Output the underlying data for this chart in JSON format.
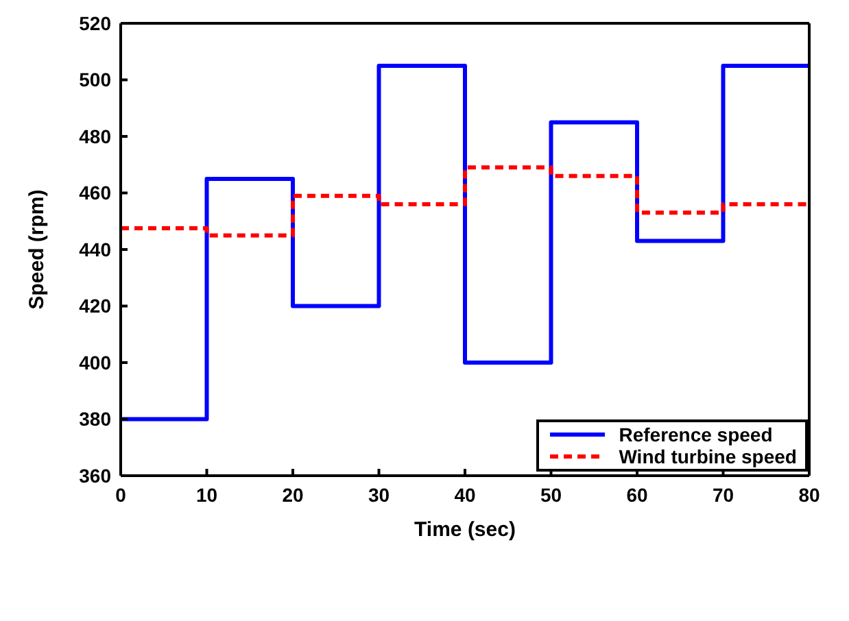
{
  "chart_data": {
    "type": "step",
    "xlabel": "Time (sec)",
    "ylabel": "Speed (rpm)",
    "x": [
      0,
      10,
      20,
      30,
      40,
      50,
      60,
      70,
      80
    ],
    "series": [
      {
        "name": "Reference speed",
        "color": "#0000ff",
        "line_style": "solid",
        "values": [
          380,
          465,
          420,
          505,
          400,
          485,
          443,
          505,
          505
        ]
      },
      {
        "name": "Wind turbine speed",
        "color": "#ff0000",
        "line_style": "dashed",
        "values": [
          447.5,
          445,
          459,
          456,
          469,
          466,
          453,
          456,
          456
        ]
      }
    ],
    "xlim": [
      0,
      80
    ],
    "xticks": [
      0,
      10,
      20,
      30,
      40,
      50,
      60,
      70,
      80
    ],
    "ylim": [
      360,
      520
    ],
    "yticks": [
      360,
      380,
      400,
      420,
      440,
      460,
      480,
      500,
      520
    ],
    "grid": false,
    "legend": "bottom right",
    "marker": "none"
  }
}
